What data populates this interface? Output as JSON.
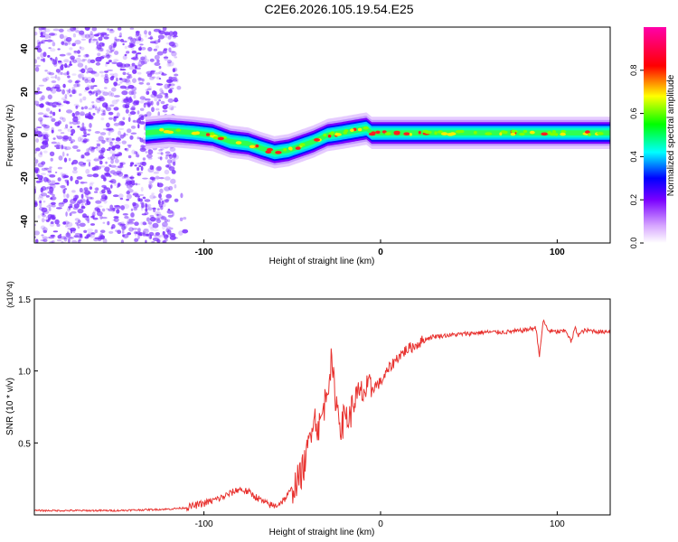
{
  "title": "C2E6.2026.105.19.54.E25",
  "colors": {
    "signal": "#e8322f",
    "scatter": "#7a2cff",
    "axis": "#000000",
    "background": "#ffffff"
  },
  "chart_data": [
    {
      "type": "heatmap",
      "id": "spectrogram",
      "xlabel": "Height of straight line (km)",
      "ylabel": "Frequency (Hz)",
      "xlim": [
        -196,
        130
      ],
      "ylim": [
        -50,
        50
      ],
      "xticks": [
        -100,
        0,
        100
      ],
      "yticks": [
        40,
        20,
        0,
        -20,
        -40
      ],
      "colorbar": {
        "label": "Normalized spectral amplitude",
        "range": [
          0,
          1
        ],
        "ticks": [
          "0.0",
          "0.2",
          "0.4",
          "0.6",
          "0.8"
        ],
        "stops": [
          "#ffffff",
          "#d7a6ff",
          "#7a00ff",
          "#0000ff",
          "#00ffff",
          "#00ff00",
          "#ffff00",
          "#ff0000",
          "#ff00aa"
        ]
      },
      "ridge_centerline": [
        [
          -133,
          1
        ],
        [
          -120,
          2
        ],
        [
          -105,
          1
        ],
        [
          -95,
          0
        ],
        [
          -85,
          -3
        ],
        [
          -75,
          -4
        ],
        [
          -68,
          -6
        ],
        [
          -60,
          -8
        ],
        [
          -52,
          -7
        ],
        [
          -45,
          -5
        ],
        [
          -38,
          -3
        ],
        [
          -30,
          0
        ],
        [
          -22,
          1
        ],
        [
          -15,
          2
        ],
        [
          -8,
          3
        ],
        [
          -5,
          1
        ],
        [
          0,
          1
        ],
        [
          10,
          1
        ],
        [
          30,
          1
        ],
        [
          60,
          1
        ],
        [
          90,
          1
        ],
        [
          130,
          1
        ]
      ]
    },
    {
      "type": "line",
      "id": "snr",
      "xlabel": "Height of straight line (km)",
      "ylabel": "SNR (10 * v/v)",
      "yscale_note": "(x10^4)",
      "xlim": [
        -196,
        130
      ],
      "ylim": [
        0,
        1.5
      ],
      "xticks": [
        -100,
        0,
        100
      ],
      "yticks": [
        0.5,
        1.0,
        1.5
      ],
      "series": [
        {
          "name": "SNR",
          "x": [
            -196,
            -150,
            -120,
            -110,
            -100,
            -95,
            -90,
            -85,
            -80,
            -75,
            -70,
            -65,
            -60,
            -55,
            -50,
            -45,
            -42,
            -40,
            -38,
            -35,
            -32,
            -30,
            -28,
            -25,
            -22,
            -20,
            -18,
            -15,
            -10,
            -5,
            0,
            5,
            10,
            15,
            20,
            25,
            30,
            40,
            50,
            60,
            70,
            80,
            88,
            90,
            92,
            95,
            100,
            105,
            108,
            110,
            112,
            115,
            120,
            125,
            130
          ],
          "y": [
            0.03,
            0.03,
            0.04,
            0.05,
            0.08,
            0.1,
            0.12,
            0.15,
            0.18,
            0.16,
            0.12,
            0.08,
            0.06,
            0.1,
            0.18,
            0.28,
            0.4,
            0.55,
            0.7,
            0.6,
            0.75,
            0.9,
            1.05,
            0.78,
            0.6,
            0.72,
            0.65,
            0.8,
            0.85,
            0.88,
            0.92,
            1.02,
            1.1,
            1.15,
            1.18,
            1.22,
            1.24,
            1.25,
            1.26,
            1.27,
            1.27,
            1.28,
            1.3,
            1.1,
            1.35,
            1.28,
            1.27,
            1.28,
            1.2,
            1.3,
            1.25,
            1.28,
            1.28,
            1.27,
            1.28
          ]
        }
      ]
    }
  ]
}
